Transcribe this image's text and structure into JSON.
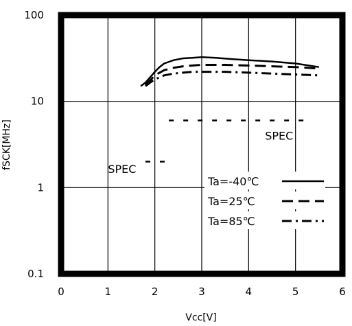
{
  "chart_data": {
    "type": "line",
    "title": "",
    "xlabel": "Vcc[V]",
    "ylabel": "fSCK[MHz]",
    "xlim": [
      0,
      6
    ],
    "ylim": [
      0.1,
      100
    ],
    "y_scale": "log",
    "grid": true,
    "x_ticks": [
      "0",
      "1",
      "2",
      "3",
      "4",
      "5",
      "6"
    ],
    "y_ticks": [
      {
        "value": 100,
        "label": "100"
      },
      {
        "value": 10,
        "label": "10"
      },
      {
        "value": 1,
        "label": "1"
      },
      {
        "value": 0.1,
        "label": "0.1"
      }
    ],
    "legend_position": "bottom-right",
    "series": [
      {
        "name": "Ta=-40℃",
        "style": "solid",
        "x": [
          1.7,
          1.8,
          1.9,
          2.0,
          2.1,
          2.2,
          2.4,
          2.6,
          2.8,
          3.0,
          3.3,
          3.6,
          4.0,
          4.5,
          5.0,
          5.5
        ],
        "y": [
          15,
          16.5,
          19,
          22,
          25,
          27.5,
          30,
          31.5,
          32,
          32.5,
          32,
          31,
          30,
          29,
          27.5,
          25
        ]
      },
      {
        "name": "Ta=25℃",
        "style": "dashed",
        "x": [
          1.8,
          1.9,
          2.0,
          2.2,
          2.4,
          2.6,
          2.8,
          3.0,
          3.5,
          4.0,
          4.5,
          5.0,
          5.5
        ],
        "y": [
          15.5,
          17.5,
          20,
          23,
          24.5,
          25.5,
          26,
          26.5,
          26.5,
          26,
          25.5,
          25,
          24
        ]
      },
      {
        "name": "Ta=85℃",
        "style": "dash-dot",
        "x": [
          1.8,
          1.9,
          2.0,
          2.2,
          2.4,
          2.6,
          2.8,
          3.0,
          3.5,
          4.0,
          4.5,
          5.0,
          5.5
        ],
        "y": [
          15,
          16.5,
          18,
          20,
          21,
          21.5,
          22,
          22,
          22,
          21.5,
          21,
          20.5,
          20
        ]
      }
    ],
    "annotations": [
      {
        "text": "SPEC",
        "style": "dotted",
        "x": [
          2.3,
          5.2
        ],
        "y": 6,
        "label_x": 4.65,
        "label_y": 4.0
      },
      {
        "text": "SPEC",
        "style": "dotted",
        "x": [
          1.8,
          2.3
        ],
        "y": 2,
        "label_x": 1.3,
        "label_y": 1.65
      }
    ]
  }
}
